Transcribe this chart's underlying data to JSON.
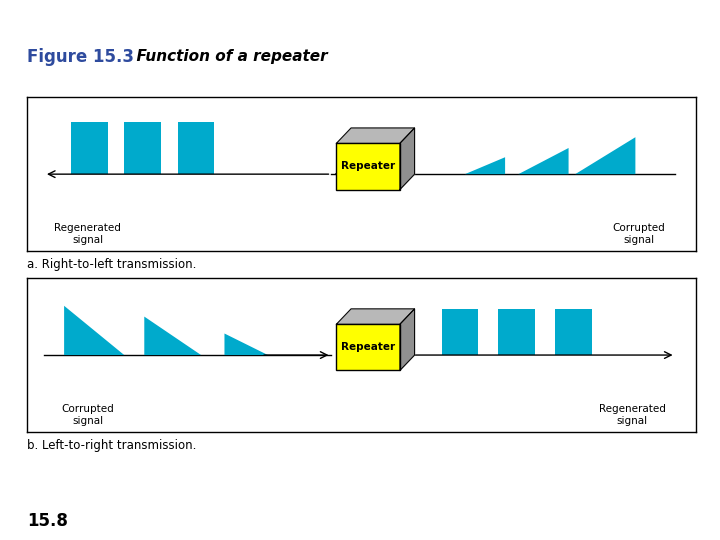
{
  "title_bold": "Figure 15.3",
  "title_italic": "  Function of a repeater",
  "title_color_bold": "#2E4B9E",
  "top_bar_color": "#CC0000",
  "repeater_fill_yellow": "#FFFF00",
  "signal_color": "#00AACC",
  "background": "#FFFFFF",
  "panel_bg": "#FFFFFF",
  "panel_edge": "#000000",
  "caption_a": "a. Right-to-left transmission.",
  "caption_b": "b. Left-to-right transmission.",
  "label_regenerated": "Regenerated\nsignal",
  "label_corrupted_right": "Corrupted\nsignal",
  "label_corrupted_left": "Corrupted\nsignal",
  "label_regenerated_right": "Regenerated\nsignal",
  "page_num": "15.8"
}
